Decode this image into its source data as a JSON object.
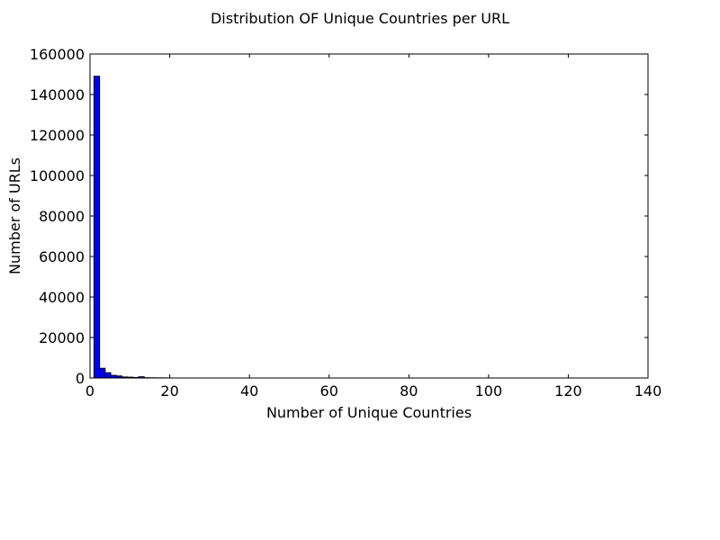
{
  "chart_data": {
    "type": "bar",
    "title": "Distribution OF Unique Countries per URL",
    "xlabel": "Number of Unique Countries",
    "ylabel": "Number of URLs",
    "xlim": [
      0,
      140
    ],
    "ylim": [
      0,
      160000
    ],
    "xticks": [
      "0",
      "20",
      "40",
      "60",
      "80",
      "100",
      "120",
      "140"
    ],
    "yticks": [
      "0",
      "20000",
      "40000",
      "60000",
      "80000",
      "100000",
      "120000",
      "140000",
      "160000"
    ],
    "grid": false,
    "legend": "none",
    "bar_color": "#0000ff",
    "bins": [
      {
        "x0": 1.0,
        "x1": 2.4,
        "value": 149000
      },
      {
        "x0": 2.4,
        "x1": 3.8,
        "value": 4800
      },
      {
        "x0": 3.8,
        "x1": 5.2,
        "value": 2600
      },
      {
        "x0": 5.2,
        "x1": 6.6,
        "value": 1300
      },
      {
        "x0": 6.6,
        "x1": 8.0,
        "value": 1000
      },
      {
        "x0": 8.0,
        "x1": 9.4,
        "value": 500
      },
      {
        "x0": 9.4,
        "x1": 10.8,
        "value": 400
      },
      {
        "x0": 10.8,
        "x1": 12.2,
        "value": 250
      },
      {
        "x0": 12.2,
        "x1": 13.6,
        "value": 600
      },
      {
        "x0": 13.6,
        "x1": 15.0,
        "value": 150
      },
      {
        "x0": 15.0,
        "x1": 16.4,
        "value": 100
      },
      {
        "x0": 16.4,
        "x1": 17.8,
        "value": 80
      },
      {
        "x0": 17.8,
        "x1": 19.2,
        "value": 60
      },
      {
        "x0": 19.2,
        "x1": 20.6,
        "value": 40
      }
    ]
  }
}
